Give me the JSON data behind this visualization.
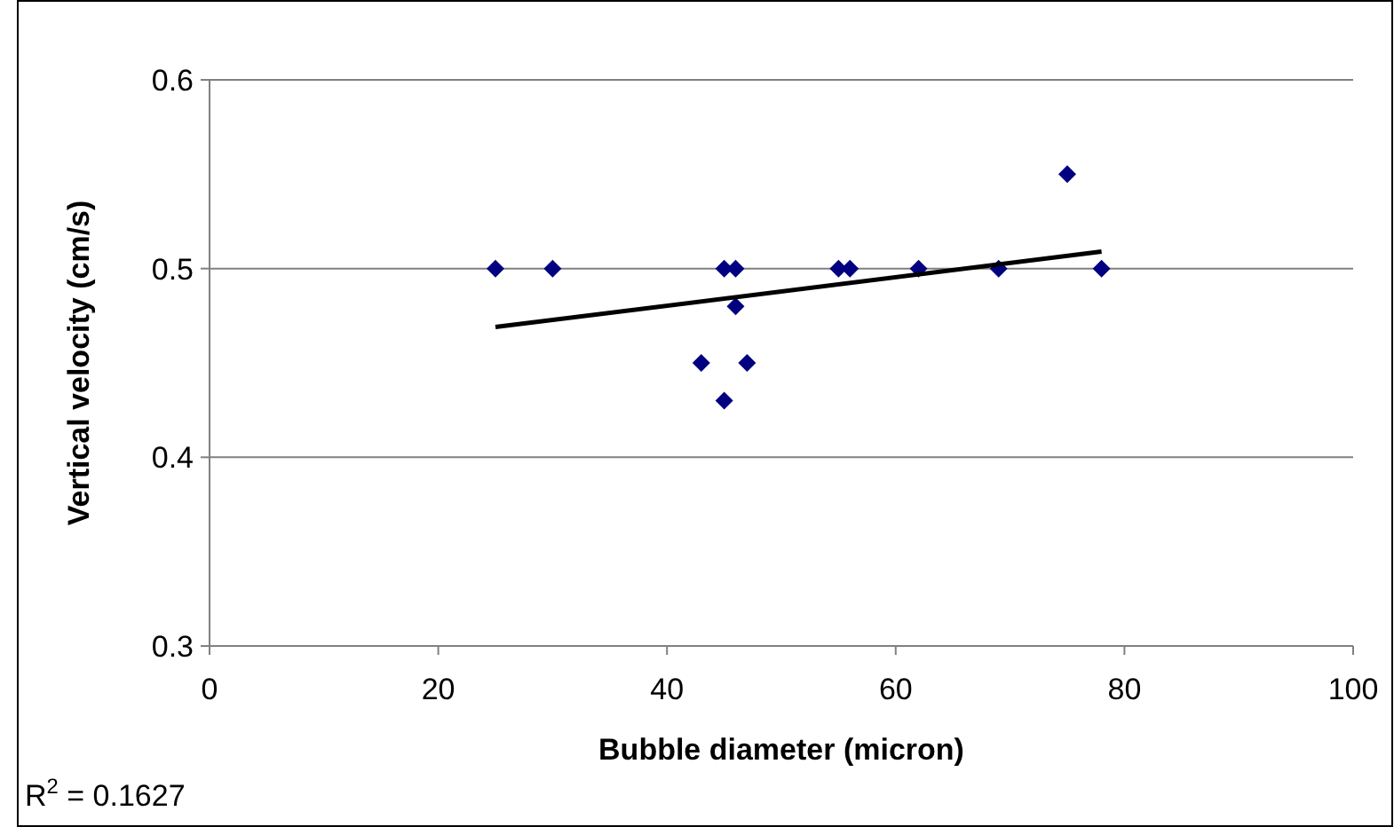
{
  "chart_data": {
    "type": "scatter",
    "xlabel": "Bubble diameter (micron)",
    "ylabel": "Vertical velocity (cm/s)",
    "xlim": [
      0,
      100
    ],
    "xticks": [
      0,
      20,
      40,
      60,
      80,
      100
    ],
    "ylim": [
      0.3,
      0.6
    ],
    "yticks": [
      0.3,
      0.4,
      0.5,
      0.6
    ],
    "grid": "y",
    "marker": "diamond",
    "series": [
      {
        "color": "#000080",
        "x": [
          25,
          30,
          43,
          45,
          45,
          46,
          46,
          47,
          55,
          56,
          62,
          69,
          75,
          78
        ],
        "values": [
          0.5,
          0.5,
          0.45,
          0.43,
          0.5,
          0.5,
          0.48,
          0.45,
          0.5,
          0.5,
          0.5,
          0.5,
          0.55,
          0.5
        ]
      },
      {
        "type": "line",
        "color": "#000000",
        "marker": "none",
        "x": [
          25,
          78
        ],
        "values": [
          0.469,
          0.509
        ]
      }
    ],
    "annotations": [
      "R$^{2}$ = 0.1627"
    ]
  }
}
